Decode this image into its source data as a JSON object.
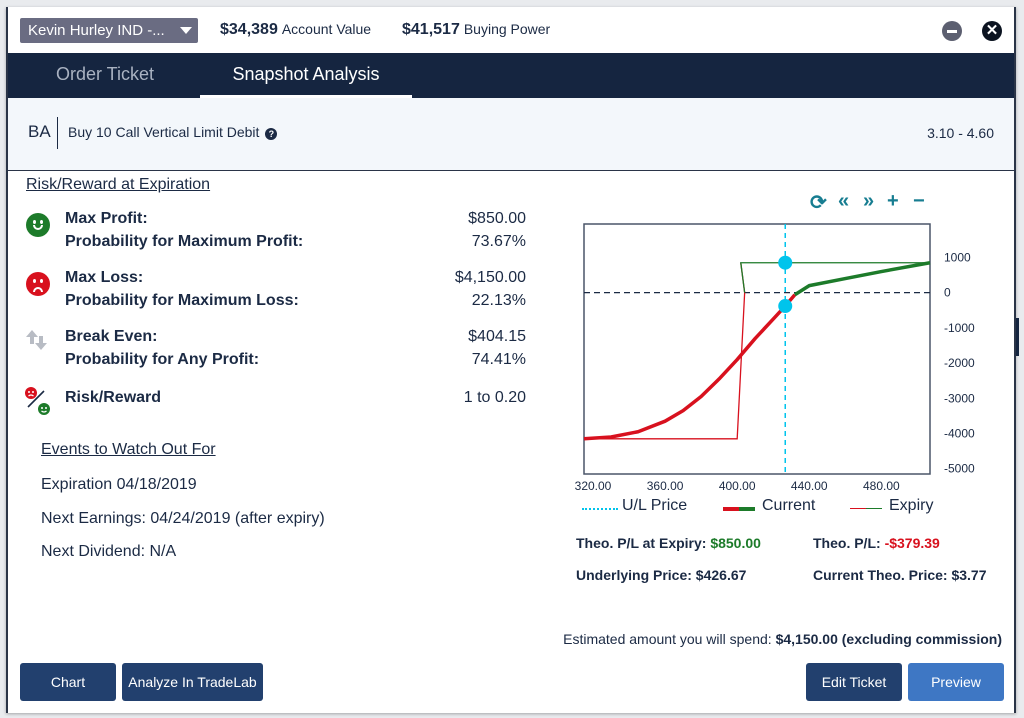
{
  "header": {
    "account_name": "Kevin Hurley IND -...",
    "account_value": "$34,389",
    "account_value_label": "Account Value",
    "buying_power": "$41,517",
    "buying_power_label": "Buying Power",
    "close_glyph": "✕"
  },
  "tabs": [
    {
      "label": "Order Ticket",
      "active": false
    },
    {
      "label": "Snapshot Analysis",
      "active": true
    }
  ],
  "order": {
    "symbol": "BA",
    "description": "Buy 10 Call Vertical Limit Debit",
    "help_glyph": "?",
    "price_range": "3.10 - 4.60"
  },
  "risk_reward": {
    "title": "Risk/Reward at Expiration",
    "rows": [
      {
        "icon": "smile-icon",
        "label": "Max Profit:",
        "value": "$850.00",
        "label2": "Probability for Maximum Profit:",
        "value2": "73.67%"
      },
      {
        "icon": "frown-icon",
        "label": "Max Loss:",
        "value": "$4,150.00",
        "label2": "Probability for Maximum Loss:",
        "value2": "22.13%"
      },
      {
        "icon": "up-down-arrows-icon",
        "label": "Break Even:",
        "value": "$404.15",
        "label2": "Probability for Any Profit:",
        "value2": "74.41%"
      },
      {
        "icon": "risk-reward-ratio-icon",
        "label": "Risk/Reward",
        "value": "1 to 0.20"
      }
    ]
  },
  "events": {
    "title": "Events to Watch Out For",
    "items": [
      "Expiration 04/18/2019",
      "Next Earnings: 04/24/2019 (after expiry)",
      "Next Dividend: N/A"
    ]
  },
  "chart_tools": [
    "refresh-icon",
    "rewind-icon",
    "forward-icon",
    "zoom-in-icon",
    "zoom-out-icon"
  ],
  "chart_tool_glyphs": [
    "⟳",
    "«",
    "»",
    "+",
    "−"
  ],
  "colors": {
    "profit": "#1d7b2a",
    "loss": "#d8111e",
    "ul_price": "#00c4ec",
    "tab_bar": "#152540"
  },
  "chart_data": {
    "type": "line",
    "title": "",
    "xlabel": "",
    "ylabel": "",
    "xlim": [
      315,
      507
    ],
    "ylim": [
      -5150,
      1950
    ],
    "x_ticks": [
      "320.00",
      "360.00",
      "400.00",
      "440.00",
      "480.00"
    ],
    "x_tick_values": [
      320,
      360,
      400,
      440,
      480
    ],
    "y_ticks": [
      "1000",
      "0",
      "-1000",
      "-2000",
      "-3000",
      "-4000",
      "-5000"
    ],
    "y_tick_values": [
      1000,
      0,
      -1000,
      -2000,
      -3000,
      -4000,
      -5000
    ],
    "zero_line": 0,
    "ul_price": 426.67,
    "legend": [
      {
        "name": "U/L Price"
      },
      {
        "name": "Current"
      },
      {
        "name": "Expiry"
      }
    ],
    "series": [
      {
        "name": "Current",
        "x": [
          315,
          330,
          345,
          360,
          370,
          380,
          390,
          400,
          410,
          420,
          426.67,
          432,
          440,
          460,
          480,
          507
        ],
        "y": [
          -4150,
          -4100,
          -3950,
          -3650,
          -3350,
          -2950,
          -2450,
          -1900,
          -1300,
          -750,
          -379.39,
          -60,
          200,
          400,
          600,
          850
        ]
      },
      {
        "name": "Expiry",
        "x": [
          315,
          400,
          404.15,
          402,
          507
        ],
        "y": [
          -4150,
          -4150,
          0,
          850,
          850
        ]
      }
    ],
    "markers": [
      {
        "label": "Theo. P/L at Expiry",
        "x": 426.67,
        "y": 850
      },
      {
        "label": "Theo. P/L",
        "x": 426.67,
        "y": -379.39
      }
    ]
  },
  "stats": {
    "theo_expiry_label": "Theo. P/L at Expiry:",
    "theo_expiry_value": "$850.00",
    "theo_pl_label": "Theo. P/L:",
    "theo_pl_value": "-$379.39",
    "underlying_label": "Underlying Price: $426.67",
    "current_theo_label": "Current Theo. Price: $3.77"
  },
  "footer": {
    "spend_label": "Estimated amount you will spend:",
    "spend_value": "$4,150.00 (excluding commission)",
    "buttons": {
      "chart": "Chart",
      "tradelab": "Analyze In TradeLab",
      "edit": "Edit Ticket",
      "preview": "Preview"
    }
  }
}
